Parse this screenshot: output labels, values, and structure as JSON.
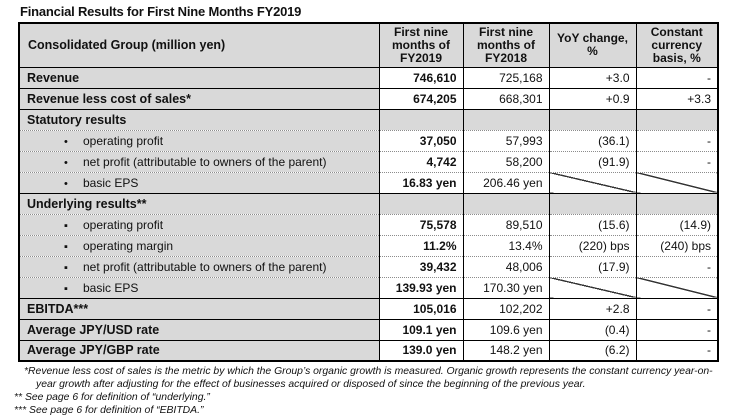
{
  "title": "Financial Results for First Nine Months FY2019",
  "colors": {
    "shading": "#d9d9d9",
    "border": "#000000",
    "dotted_divider": "#8c8c8c",
    "text": "#111111"
  },
  "table": {
    "header": {
      "group_label": "Consolidated Group (million yen)",
      "columns": [
        "First nine months of FY2019",
        "First nine months of FY2018",
        "YoY change, %",
        "Constant currency basis, %"
      ]
    },
    "rows": [
      {
        "type": "data",
        "label": "Revenue",
        "fy2019": "746,610",
        "fy2018": "725,168",
        "yoy": "+3.0",
        "cc": "-"
      },
      {
        "type": "data",
        "label": "Revenue less cost of sales*",
        "fy2019": "674,205",
        "fy2018": "668,301",
        "yoy": "+0.9",
        "cc": "+3.3"
      },
      {
        "type": "section",
        "label": "Statutory results"
      },
      {
        "type": "bullet",
        "bullet": "•",
        "label": "operating profit",
        "fy2019": "37,050",
        "fy2018": "57,993",
        "yoy": "(36.1)",
        "cc": "-"
      },
      {
        "type": "bullet",
        "bullet": "•",
        "label": "net profit (attributable to owners of the parent)",
        "fy2019": "4,742",
        "fy2018": "58,200",
        "yoy": "(91.9)",
        "cc": "-"
      },
      {
        "type": "bullet",
        "bullet": "•",
        "label": "basic EPS",
        "fy2019": "16.83 yen",
        "fy2018": "206.46 yen",
        "diagonal": true
      },
      {
        "type": "section",
        "label": "Underlying results**"
      },
      {
        "type": "bullet",
        "bullet": "▪",
        "label": "operating profit",
        "fy2019": "75,578",
        "fy2018": "89,510",
        "yoy": "(15.6)",
        "cc": "(14.9)"
      },
      {
        "type": "bullet",
        "bullet": "▪",
        "label": "operating margin",
        "fy2019": "11.2%",
        "fy2018": "13.4%",
        "yoy": "(220) bps",
        "cc": "(240) bps"
      },
      {
        "type": "bullet",
        "bullet": "▪",
        "label": "net profit (attributable to owners of the parent)",
        "fy2019": "39,432",
        "fy2018": "48,006",
        "yoy": "(17.9)",
        "cc": "-"
      },
      {
        "type": "bullet",
        "bullet": "▪",
        "label": "basic EPS",
        "fy2019": "139.93 yen",
        "fy2018": "170.30 yen",
        "diagonal": true
      },
      {
        "type": "data",
        "label": "EBITDA***",
        "fy2019": "105,016",
        "fy2018": "102,202",
        "yoy": "+2.8",
        "cc": "-"
      },
      {
        "type": "data",
        "label": "Average JPY/USD rate",
        "fy2019": "109.1 yen",
        "fy2018": "109.6 yen",
        "yoy": "(0.4)",
        "cc": "-"
      },
      {
        "type": "data",
        "label": "Average JPY/GBP rate",
        "fy2019": "139.0 yen",
        "fy2018": "148.2 yen",
        "yoy": "(6.2)",
        "cc": "-"
      }
    ]
  },
  "footnotes": [
    "*Revenue less cost of sales is the metric by which the Group’s organic growth is measured. Organic growth represents the constant currency year-on-year growth after adjusting for the effect of businesses acquired or disposed of since the beginning of the previous year.",
    "** See page 6 for definition of “underlying.”",
    "*** See page 6 for definition of “EBITDA.”"
  ]
}
